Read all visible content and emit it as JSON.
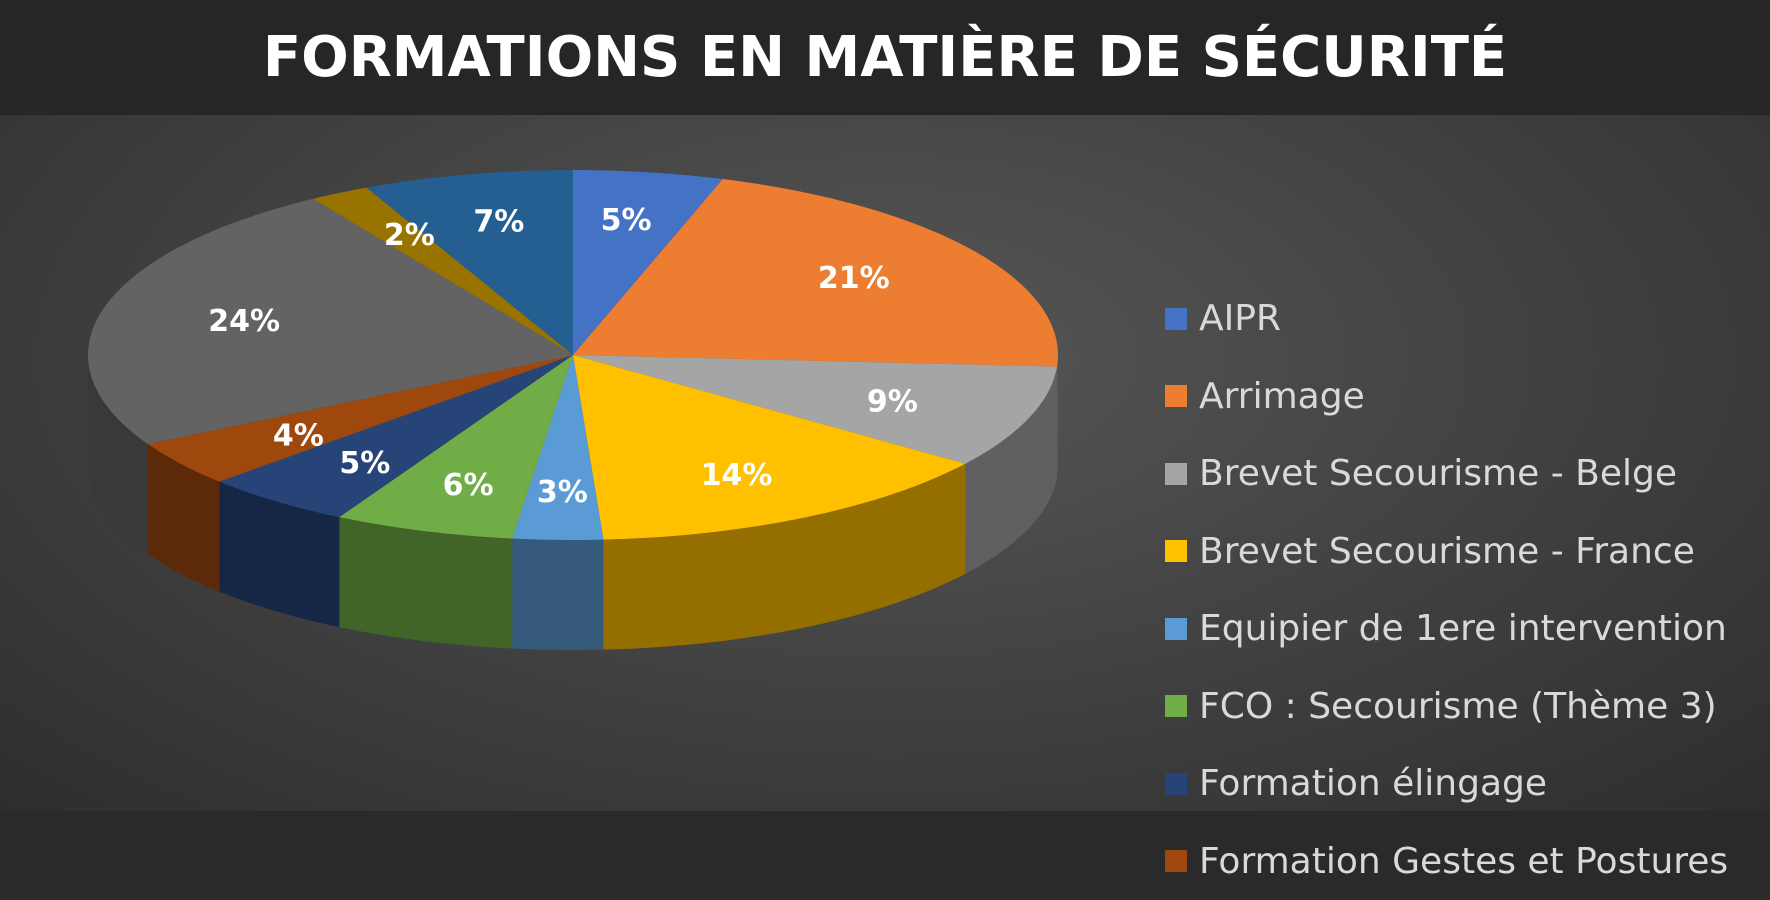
{
  "chart_data": {
    "type": "pie",
    "title": "FORMATIONS EN MATIÈRE DE SÉCURITÉ",
    "legend_position": "right",
    "slices": [
      {
        "label": "AIPR",
        "value": 5,
        "display": "5%",
        "color": "#4472C4"
      },
      {
        "label": "Arrimage",
        "value": 21,
        "display": "21%",
        "color": "#ED7D31"
      },
      {
        "label": "Brevet Secourisme - Belge",
        "value": 9,
        "display": "9%",
        "color": "#A5A5A5"
      },
      {
        "label": "Brevet Secourisme - France",
        "value": 14,
        "display": "14%",
        "color": "#FFC000"
      },
      {
        "label": "Equipier de 1ere intervention",
        "value": 3,
        "display": "3%",
        "color": "#5B9BD5"
      },
      {
        "label": "FCO : Secourisme (Thème 3)",
        "value": 6,
        "display": "6%",
        "color": "#70AD47"
      },
      {
        "label": "Formation élingage",
        "value": 5,
        "display": "5%",
        "color": "#264478"
      },
      {
        "label": "Formation Gestes et Postures",
        "value": 4,
        "display": "4%",
        "color": "#9E480E"
      },
      {
        "label": "",
        "value": 24,
        "display": "24%",
        "color": "#636363"
      },
      {
        "label": "",
        "value": 2,
        "display": "2%",
        "color": "#997300"
      },
      {
        "label": "",
        "value": 7,
        "display": "7%",
        "color": "#255E91"
      }
    ],
    "legend": [
      {
        "label": "AIPR",
        "color": "#4472C4"
      },
      {
        "label": "Arrimage",
        "color": "#ED7D31"
      },
      {
        "label": "Brevet Secourisme - Belge",
        "color": "#A5A5A5"
      },
      {
        "label": "Brevet Secourisme - France",
        "color": "#FFC000"
      },
      {
        "label": "Equipier de 1ere intervention",
        "color": "#5B9BD5"
      },
      {
        "label": "FCO : Secourisme (Thème 3)",
        "color": "#70AD47"
      },
      {
        "label": "Formation élingage",
        "color": "#264478"
      },
      {
        "label": "Formation Gestes et Postures",
        "color": "#9E480E"
      }
    ]
  }
}
